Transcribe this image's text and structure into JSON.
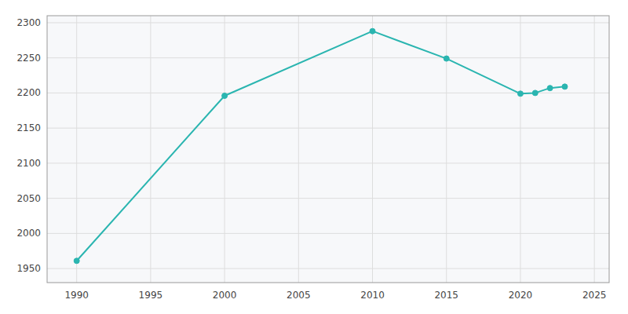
{
  "chart_data": {
    "type": "line",
    "x": [
      1990,
      2000,
      2010,
      2015,
      2020,
      2021,
      2022,
      2023
    ],
    "values": [
      1961,
      2196,
      2288,
      2249,
      2199,
      2200,
      2207,
      2209
    ],
    "color": "#2ab5b0",
    "marker": "circle",
    "xlim": [
      1988,
      2026
    ],
    "ylim": [
      1930,
      2310
    ],
    "xticks": [
      1990,
      1995,
      2000,
      2005,
      2010,
      2015,
      2020,
      2025
    ],
    "yticks": [
      1950,
      2000,
      2050,
      2100,
      2150,
      2200,
      2250,
      2300
    ],
    "grid": true
  }
}
